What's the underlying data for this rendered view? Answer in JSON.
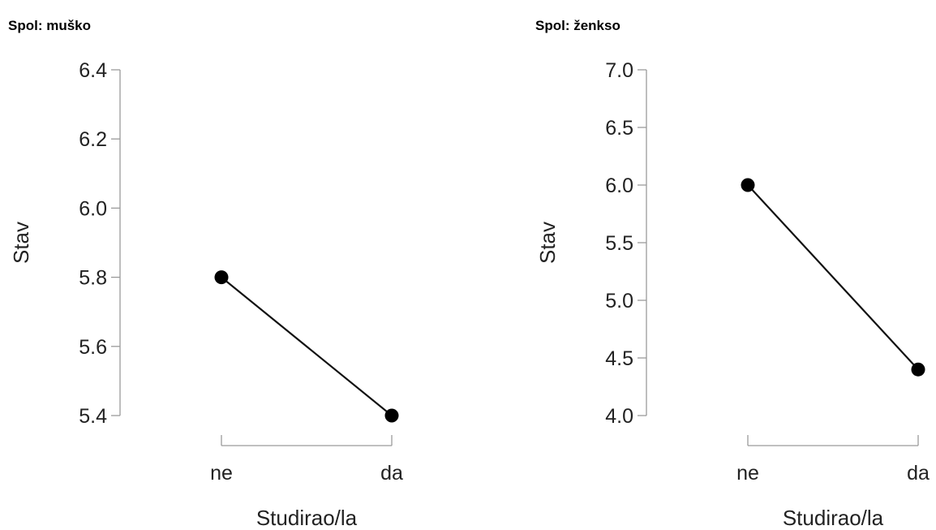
{
  "chart_data": [
    {
      "type": "line",
      "title": "Spol: muško",
      "xlabel": "Studirao/la",
      "ylabel": "Stav",
      "categories": [
        "ne",
        "da"
      ],
      "values": [
        5.8,
        5.4
      ],
      "ylim": [
        5.4,
        6.4
      ],
      "yticks": [
        "5.4",
        "5.6",
        "5.8",
        "6.0",
        "6.2",
        "6.4"
      ],
      "grid": false
    },
    {
      "type": "line",
      "title": "Spol: ženkso",
      "xlabel": "Studirao/la",
      "ylabel": "Stav",
      "categories": [
        "ne",
        "da"
      ],
      "values": [
        6.0,
        4.4
      ],
      "ylim": [
        4.0,
        7.0
      ],
      "yticks": [
        "4.0",
        "4.5",
        "5.0",
        "5.5",
        "6.0",
        "6.5",
        "7.0"
      ],
      "grid": false
    }
  ],
  "colors": {
    "line": "#111111",
    "point": "#000000",
    "axis": "#9a9a9a",
    "text": "#222222"
  }
}
